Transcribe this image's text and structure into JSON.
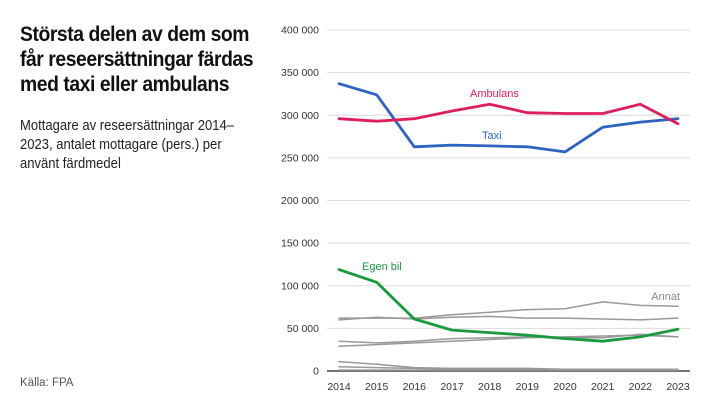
{
  "title": "Största delen av dem som får reseersättningar färdas med taxi eller ambulans",
  "subtitle": "Mottagare av reseersättningar 2014–2023, antalet mottagare (pers.) per använt färdmedel",
  "source": "Källa: FPA",
  "chart_data": {
    "type": "line",
    "x": [
      2014,
      2015,
      2016,
      2017,
      2018,
      2019,
      2020,
      2021,
      2022,
      2023
    ],
    "ylim": [
      0,
      400000
    ],
    "yticks": [
      0,
      50000,
      100000,
      150000,
      200000,
      250000,
      300000,
      350000,
      400000
    ],
    "ytick_labels": [
      "0",
      "50 000",
      "100 000",
      "150 000",
      "200 000",
      "250 000",
      "300 000",
      "350 000",
      "400 000"
    ],
    "series": [
      {
        "name": "Annat",
        "color": "#999999",
        "labeled": false,
        "values": [
          62000,
          62000,
          62000,
          66000,
          69000,
          72000,
          73000,
          81000,
          77000,
          76000
        ]
      },
      {
        "name": "Annat",
        "color": "#999999",
        "labeled": false,
        "values": [
          60000,
          63000,
          61000,
          63000,
          64000,
          62000,
          62000,
          61000,
          60000,
          62000
        ]
      },
      {
        "name": "Annat",
        "color": "#999999",
        "labeled": false,
        "values": [
          29000,
          31000,
          33000,
          35000,
          37000,
          39000,
          40000,
          41000,
          42000,
          40000
        ]
      },
      {
        "name": "Annat",
        "color": "#999999",
        "labeled": false,
        "values": [
          35000,
          33000,
          35000,
          38000,
          39000,
          40000,
          39000,
          39000,
          43000,
          40000
        ]
      },
      {
        "name": "Annat",
        "color": "#999999",
        "labeled": false,
        "values": [
          11000,
          8000,
          4000,
          3000,
          3000,
          3000,
          2000,
          2000,
          2000,
          2000
        ]
      },
      {
        "name": "Annat",
        "color": "#999999",
        "labeled": false,
        "values": [
          5000,
          4000,
          3000,
          2000,
          2000,
          2000,
          1000,
          1000,
          1000,
          1000
        ]
      },
      {
        "name": "Annat",
        "color": "#999999",
        "labeled": true,
        "values": [
          1000,
          1000,
          1000,
          1000,
          1000,
          1000,
          1000,
          1000,
          1000,
          1000
        ]
      },
      {
        "name": "Egen bil",
        "color": "#1a9a3c",
        "labeled": true,
        "values": [
          119000,
          104000,
          61000,
          48000,
          45000,
          42000,
          38000,
          35000,
          40000,
          49000
        ]
      },
      {
        "name": "Taxi",
        "color": "#2e63c0",
        "labeled": true,
        "values": [
          337000,
          324000,
          263000,
          265000,
          264000,
          263000,
          257000,
          286000,
          292000,
          296000
        ]
      },
      {
        "name": "Ambulans",
        "color": "#dd1f5f",
        "labeled": true,
        "values": [
          296000,
          293000,
          296000,
          305000,
          313000,
          303000,
          302000,
          302000,
          313000,
          290000
        ]
      }
    ]
  }
}
